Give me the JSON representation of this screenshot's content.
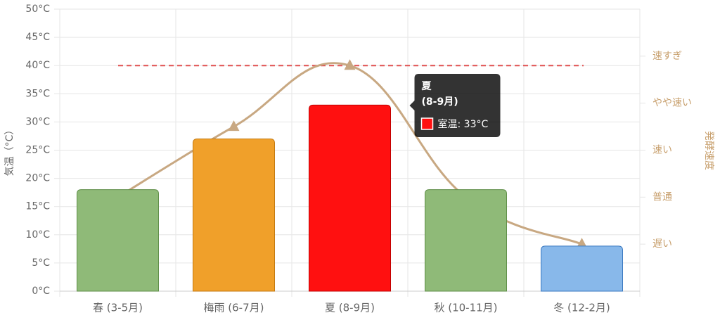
{
  "chart_data": {
    "type": "bar",
    "categories": [
      "春 (3-5月)",
      "梅雨 (6-7月)",
      "夏 (8-9月)",
      "秋 (10-11月)",
      "冬 (12-2月)"
    ],
    "series": [
      {
        "name": "室温",
        "colors": [
          "#8fba78",
          "#f0a02a",
          "#ff1010",
          "#8fba78",
          "#88b8ea"
        ],
        "borders": [
          "#5f8f48",
          "#c47a10",
          "#c00000",
          "#5f8f48",
          "#3a78c0"
        ],
        "values": [
          18,
          27,
          33,
          18,
          8
        ]
      },
      {
        "type": "line",
        "axis": "y2",
        "color": "#c8a882",
        "values": [
          2,
          3.5,
          4.8,
          2,
          1
        ]
      }
    ],
    "ylabel": "気温（°C）",
    "y2label": "発酵速度",
    "ylim": [
      0,
      50
    ],
    "yticks": [
      {
        "value": 0,
        "label": "0°C"
      },
      {
        "value": 5,
        "label": "5°C"
      },
      {
        "value": 10,
        "label": "10°C"
      },
      {
        "value": 15,
        "label": "15°C"
      },
      {
        "value": 20,
        "label": "20°C"
      },
      {
        "value": 25,
        "label": "25°C"
      },
      {
        "value": 30,
        "label": "30°C"
      },
      {
        "value": 35,
        "label": "35°C"
      },
      {
        "value": 40,
        "label": "40°C"
      },
      {
        "value": 45,
        "label": "45°C"
      },
      {
        "value": 50,
        "label": "50°C"
      }
    ],
    "y2lim": [
      0,
      6
    ],
    "y2ticks": [
      {
        "value": 1,
        "label": "遅い"
      },
      {
        "value": 2,
        "label": "普通"
      },
      {
        "value": 3,
        "label": "速い"
      },
      {
        "value": 4,
        "label": "やや速い"
      },
      {
        "value": 5,
        "label": "速すぎ"
      }
    ],
    "reference_line": {
      "value": 40,
      "color": "#e05050"
    },
    "grid": true,
    "tooltip": {
      "title": [
        "夏",
        "(8-9月)"
      ],
      "label": "室温: 33°C",
      "index": 2
    }
  }
}
